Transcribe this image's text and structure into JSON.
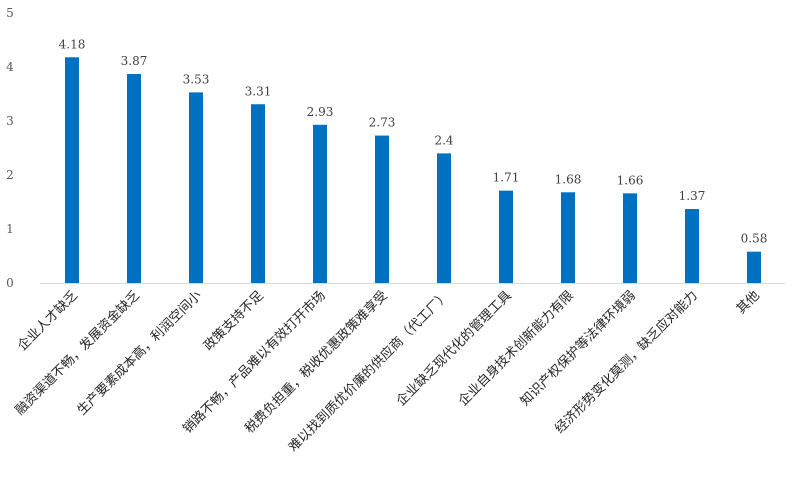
{
  "chart_data": {
    "type": "bar",
    "title": "",
    "xlabel": "",
    "ylabel": "",
    "ylim": [
      0,
      5
    ],
    "yticks": [
      0,
      1,
      2,
      3,
      4,
      5
    ],
    "grid": false,
    "legend": "none",
    "bar_color": "#0070C0",
    "categories": [
      "企业人才缺乏",
      "融资渠道不畅，发展资金缺乏",
      "生产要素成本高，利润空间小",
      "政策支持不足",
      "销路不畅，产品难以有效打开市场",
      "税费负担重，税收优惠政策难享受",
      "难以找到质优价廉的供应商（代工厂）",
      "企业缺乏现代化的管理工具",
      "企业自身技术创新能力有限",
      "知识产权保护等法律环境弱",
      "经济形势变化莫测，缺乏应对能力",
      "其他"
    ],
    "values": [
      4.18,
      3.87,
      3.53,
      3.31,
      2.93,
      2.73,
      2.4,
      1.71,
      1.68,
      1.66,
      1.37,
      0.58
    ],
    "data_labels": [
      "4.18",
      "3.87",
      "3.53",
      "3.31",
      "2.93",
      "2.73",
      "2.4",
      "1.71",
      "1.68",
      "1.66",
      "1.37",
      "0.58"
    ]
  }
}
